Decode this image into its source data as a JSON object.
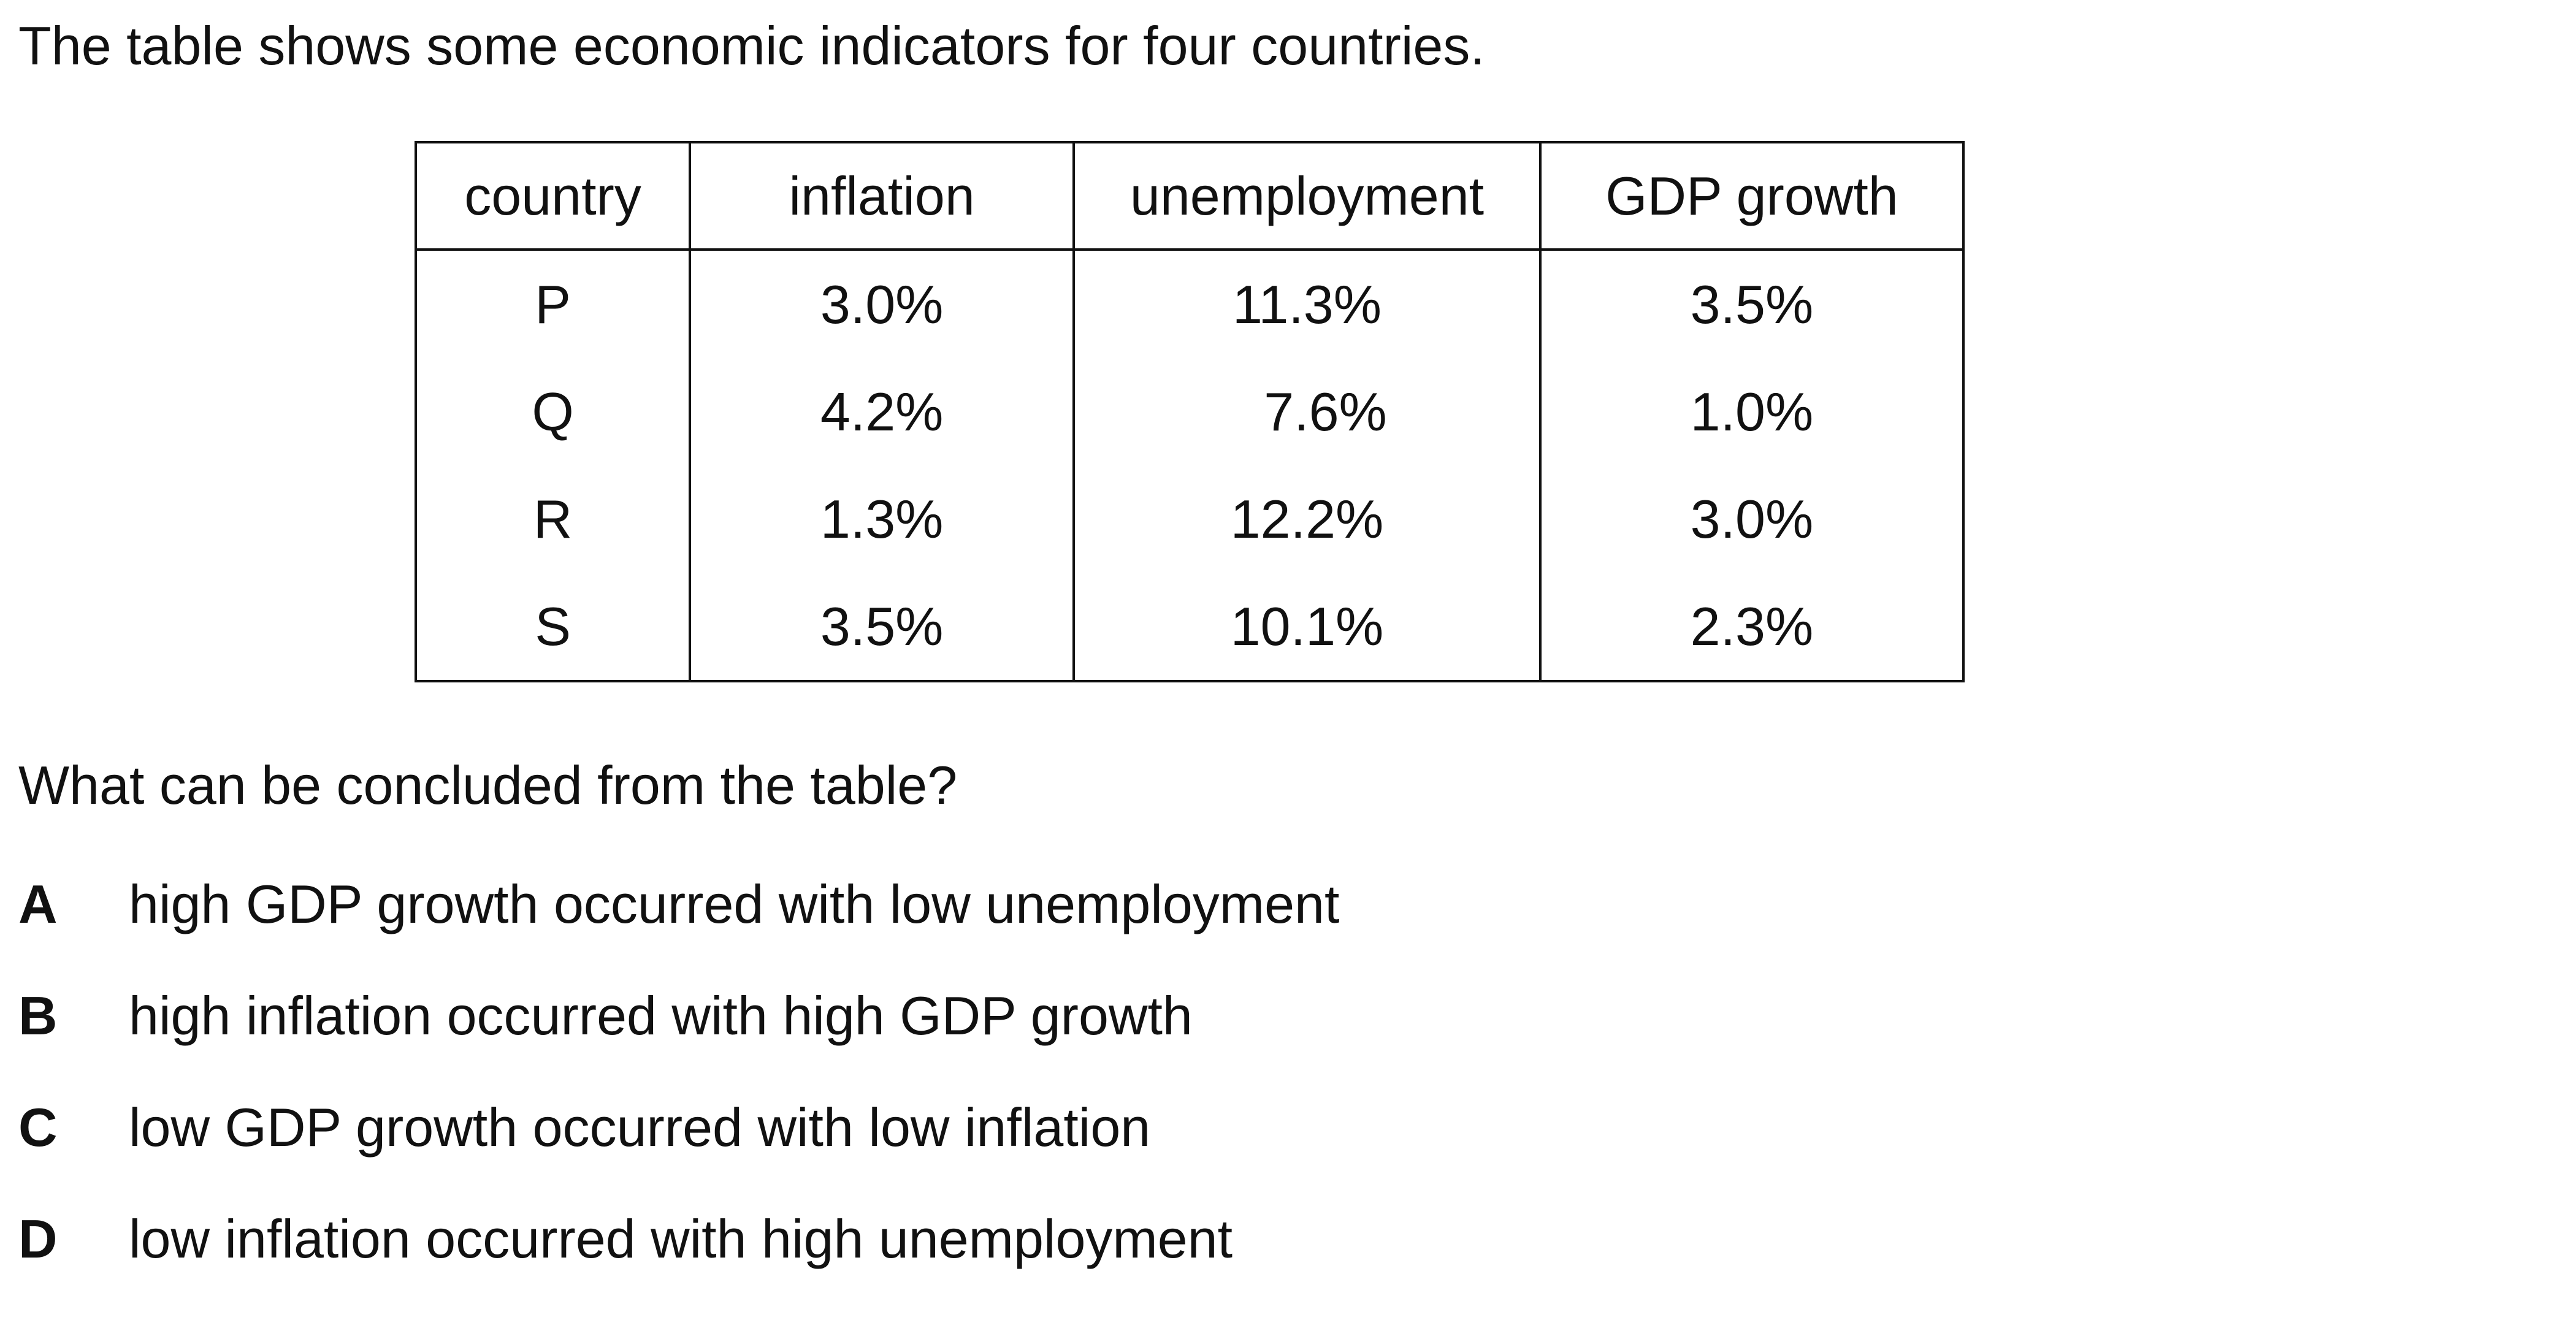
{
  "intro_text": "The table shows some economic indicators for four countries.",
  "table": {
    "headers": [
      "country",
      "inflation",
      "unemployment",
      "GDP growth"
    ],
    "rows": [
      [
        "P",
        "3.0%",
        "11.3%",
        "3.5%"
      ],
      [
        "Q",
        "4.2%",
        "7.6%",
        "1.0%"
      ],
      [
        "R",
        "1.3%",
        "12.2%",
        "3.0%"
      ],
      [
        "S",
        "3.5%",
        "10.1%",
        "2.3%"
      ]
    ]
  },
  "question": "What can be concluded from the table?",
  "options": [
    {
      "letter": "A",
      "text": "high GDP growth occurred with low unemployment"
    },
    {
      "letter": "B",
      "text": "high inflation occurred with high GDP growth"
    },
    {
      "letter": "C",
      "text": "low GDP growth occurred with low inflation"
    },
    {
      "letter": "D",
      "text": "low inflation occurred with high unemployment"
    }
  ]
}
